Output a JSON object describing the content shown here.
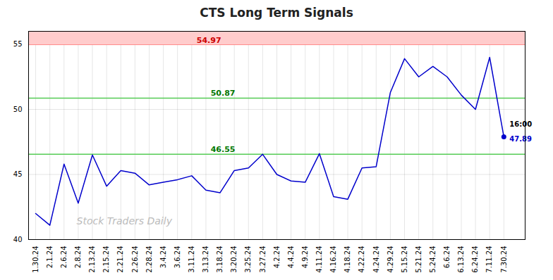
{
  "chart_data": {
    "type": "line",
    "title": "CTS Long Term Signals",
    "categories": [
      "1.30.24",
      "2.1.24",
      "2.6.24",
      "2.8.24",
      "2.13.24",
      "2.15.24",
      "2.21.24",
      "2.26.24",
      "2.28.24",
      "3.4.24",
      "3.6.24",
      "3.11.24",
      "3.13.24",
      "3.18.24",
      "3.20.24",
      "3.25.24",
      "3.27.24",
      "4.2.24",
      "4.4.24",
      "4.9.24",
      "4.11.24",
      "4.16.24",
      "4.18.24",
      "4.22.24",
      "4.24.24",
      "4.29.24",
      "5.15.24",
      "5.21.24",
      "5.24.24",
      "6.6.24",
      "6.13.24",
      "6.24.24",
      "7.11.24",
      "7.30.24"
    ],
    "values": [
      42.0,
      41.1,
      45.8,
      42.8,
      46.5,
      44.1,
      45.3,
      45.1,
      44.2,
      44.4,
      44.6,
      44.9,
      43.8,
      43.6,
      45.3,
      45.5,
      46.55,
      45.0,
      44.5,
      44.4,
      46.6,
      43.3,
      43.1,
      45.5,
      45.6,
      51.3,
      53.9,
      52.5,
      53.3,
      52.5,
      51.1,
      50.0,
      54.0,
      47.89
    ],
    "color": "#0000cc",
    "ylim": [
      40,
      56
    ],
    "yticks": [
      40,
      45,
      50,
      55
    ],
    "grid": true,
    "hlines": [
      {
        "value": 54.97,
        "label": "54.97",
        "color": "#ff8888",
        "label_color": "#cc0000",
        "fill_above": "#ffcccc"
      },
      {
        "value": 50.87,
        "label": "50.87",
        "color": "#55cc55",
        "label_color": "#007700"
      },
      {
        "value": 46.55,
        "label": "46.55",
        "color": "#55cc55",
        "label_color": "#007700"
      }
    ],
    "last_point": {
      "time": "16:00",
      "value": 47.89,
      "color": "#0000cc",
      "time_color": "#000000"
    },
    "watermark": "Stock Traders Daily"
  }
}
